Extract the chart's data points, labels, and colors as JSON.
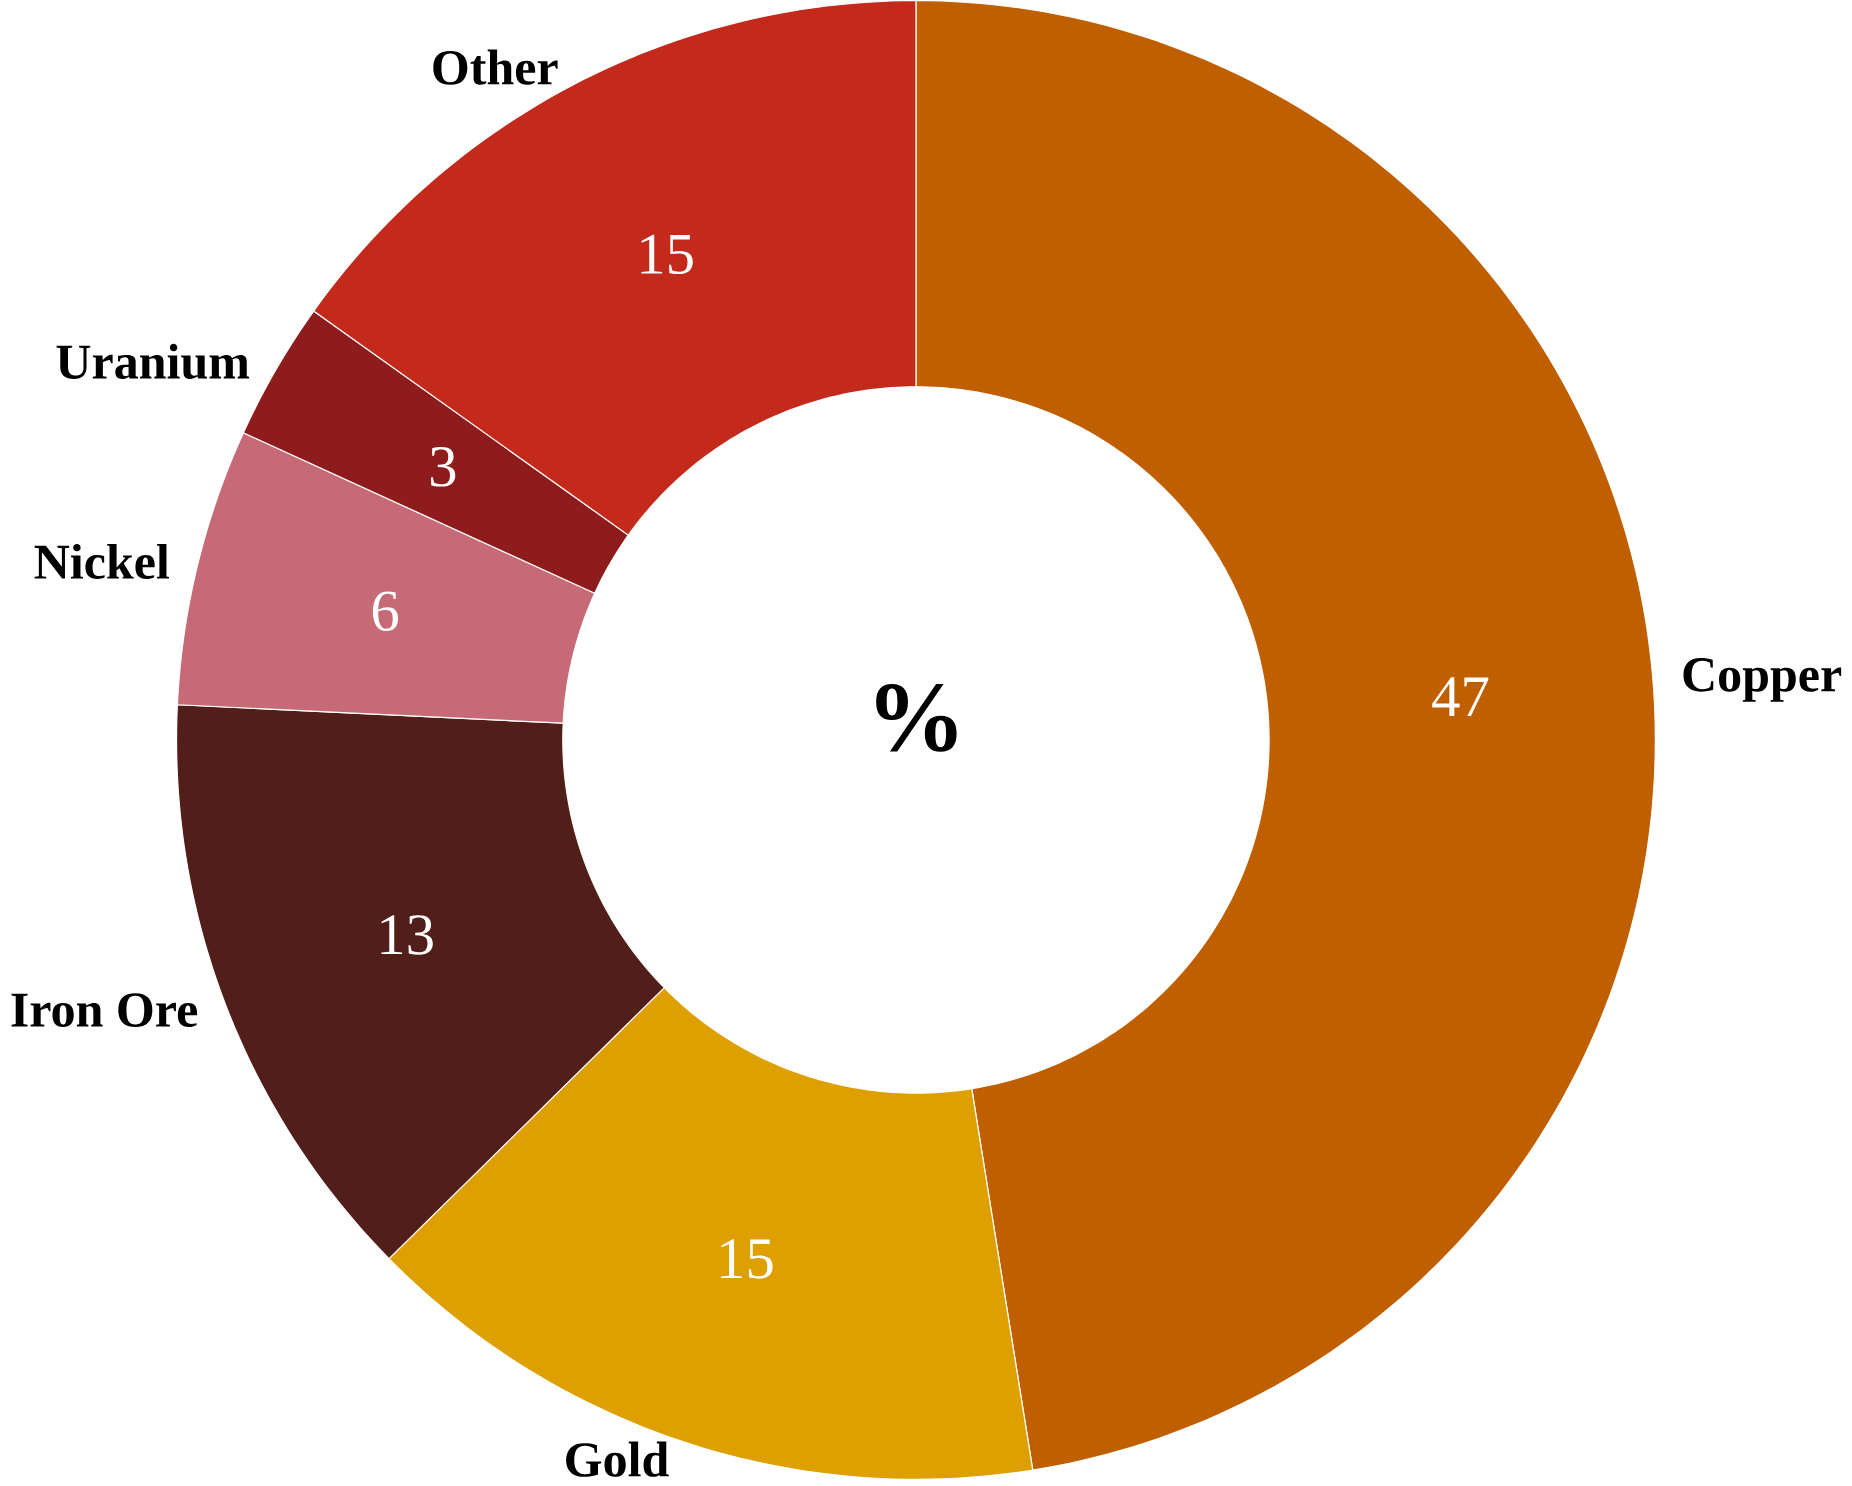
{
  "chart_data": {
    "type": "donut",
    "categories": [
      "Copper",
      "Gold",
      "Iron Ore",
      "Nickel",
      "Uranium",
      "Other"
    ],
    "values": [
      47,
      15,
      13,
      6,
      3,
      15
    ],
    "colors": [
      "#c05f00",
      "#dea000",
      "#521e1a",
      "#c76a78",
      "#8e1c1c",
      "#c42a1c"
    ],
    "data_labels": true,
    "annotations": [
      "%"
    ]
  }
}
